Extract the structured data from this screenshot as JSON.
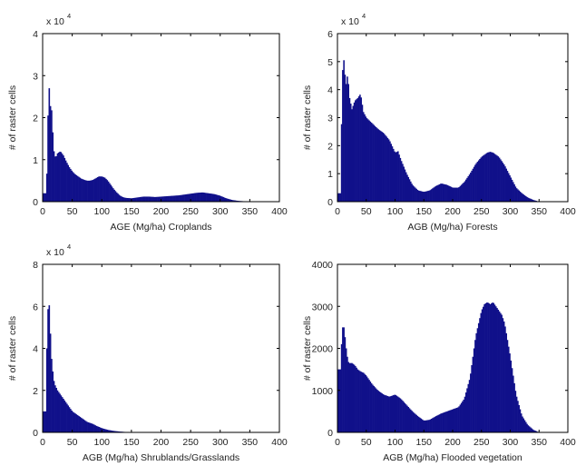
{
  "chart_data": [
    {
      "type": "bar",
      "xlabel": "AGE (Mg/ha) Croplands",
      "ylabel": "# of raster cells",
      "y_multiplier": "x 10",
      "y_exponent": "4",
      "xlim": [
        0,
        400
      ],
      "ylim": [
        0,
        4
      ],
      "xticks": [
        "0",
        "50",
        "100",
        "150",
        "200",
        "250",
        "300",
        "350",
        "400"
      ],
      "yticks": [
        "0",
        "1",
        "2",
        "3",
        "4"
      ],
      "x": [
        5,
        8,
        10,
        12,
        14,
        16,
        18,
        20,
        22,
        25,
        30,
        35,
        40,
        45,
        50,
        55,
        60,
        65,
        70,
        75,
        80,
        85,
        90,
        95,
        100,
        105,
        110,
        115,
        120,
        125,
        130,
        135,
        140,
        150,
        160,
        170,
        180,
        190,
        200,
        210,
        220,
        230,
        240,
        250,
        260,
        270,
        280,
        290,
        300,
        310,
        320,
        330,
        340,
        350
      ],
      "values": [
        0.2,
        0.9,
        3.2,
        2.2,
        2.35,
        2.0,
        1.3,
        1.1,
        1.05,
        1.15,
        1.2,
        1.1,
        0.95,
        0.82,
        0.72,
        0.65,
        0.6,
        0.55,
        0.52,
        0.5,
        0.5,
        0.52,
        0.56,
        0.6,
        0.6,
        0.57,
        0.5,
        0.4,
        0.3,
        0.22,
        0.15,
        0.11,
        0.09,
        0.08,
        0.1,
        0.12,
        0.12,
        0.11,
        0.12,
        0.13,
        0.14,
        0.15,
        0.17,
        0.19,
        0.21,
        0.22,
        0.2,
        0.18,
        0.14,
        0.08,
        0.04,
        0.02,
        0.01,
        0
      ]
    },
    {
      "type": "bar",
      "xlabel": "AGB (Mg/ha) Forests",
      "ylabel": "# of raster cells",
      "y_multiplier": "x 10",
      "y_exponent": "4",
      "xlim": [
        0,
        400
      ],
      "ylim": [
        0,
        6
      ],
      "xticks": [
        "0",
        "50",
        "100",
        "150",
        "200",
        "250",
        "300",
        "350",
        "400"
      ],
      "yticks": [
        "0",
        "1",
        "2",
        "3",
        "4",
        "5",
        "6"
      ],
      "x": [
        5,
        8,
        10,
        12,
        15,
        18,
        20,
        25,
        30,
        35,
        40,
        45,
        50,
        60,
        70,
        80,
        90,
        100,
        105,
        110,
        120,
        130,
        140,
        150,
        160,
        170,
        180,
        190,
        200,
        210,
        220,
        230,
        240,
        250,
        260,
        265,
        270,
        280,
        290,
        300,
        310,
        320,
        330,
        340,
        350
      ],
      "values": [
        0.3,
        4.0,
        5.4,
        4.7,
        4.2,
        4.6,
        3.8,
        3.3,
        3.6,
        3.7,
        3.85,
        3.2,
        3.0,
        2.8,
        2.6,
        2.45,
        2.2,
        1.75,
        1.8,
        1.5,
        1.0,
        0.6,
        0.4,
        0.35,
        0.4,
        0.55,
        0.65,
        0.6,
        0.5,
        0.5,
        0.7,
        1.0,
        1.35,
        1.6,
        1.75,
        1.78,
        1.75,
        1.6,
        1.3,
        0.9,
        0.5,
        0.3,
        0.15,
        0.06,
        0
      ]
    },
    {
      "type": "bar",
      "xlabel": "AGB (Mg/ha) Shrublands/Grasslands",
      "ylabel": "# of raster cells",
      "y_multiplier": "x 10",
      "y_exponent": "4",
      "xlim": [
        0,
        400
      ],
      "ylim": [
        0,
        8
      ],
      "xticks": [
        "0",
        "50",
        "100",
        "150",
        "200",
        "250",
        "300",
        "350",
        "400"
      ],
      "yticks": [
        "0",
        "2",
        "4",
        "6",
        "8"
      ],
      "x": [
        5,
        7,
        10,
        12,
        15,
        18,
        20,
        25,
        30,
        35,
        40,
        45,
        50,
        55,
        60,
        65,
        70,
        75,
        80,
        85,
        90,
        100,
        110,
        120,
        130,
        140,
        150
      ],
      "values": [
        1.0,
        4.0,
        6.8,
        5.3,
        3.5,
        2.6,
        2.3,
        2.0,
        1.8,
        1.6,
        1.4,
        1.2,
        1.0,
        0.9,
        0.8,
        0.7,
        0.6,
        0.5,
        0.45,
        0.4,
        0.32,
        0.2,
        0.12,
        0.07,
        0.04,
        0.02,
        0
      ]
    },
    {
      "type": "bar",
      "xlabel": "AGB (Mg/ha) Flooded vegetation",
      "ylabel": "# of raster cells",
      "xlim": [
        0,
        400
      ],
      "ylim": [
        0,
        4000
      ],
      "xticks": [
        "0",
        "50",
        "100",
        "150",
        "200",
        "250",
        "300",
        "350",
        "400"
      ],
      "yticks": [
        "0",
        "1000",
        "2000",
        "3000",
        "4000"
      ],
      "x": [
        5,
        8,
        10,
        12,
        15,
        18,
        20,
        25,
        30,
        35,
        40,
        45,
        50,
        55,
        60,
        70,
        80,
        90,
        100,
        110,
        120,
        130,
        140,
        150,
        160,
        170,
        180,
        190,
        200,
        210,
        220,
        230,
        240,
        250,
        255,
        260,
        265,
        270,
        275,
        280,
        285,
        290,
        300,
        310,
        320,
        330,
        340,
        350
      ],
      "values": [
        1500,
        2400,
        2600,
        2400,
        2000,
        1700,
        1650,
        1650,
        1600,
        1500,
        1450,
        1420,
        1350,
        1250,
        1150,
        1000,
        900,
        850,
        900,
        800,
        650,
        500,
        380,
        280,
        300,
        380,
        450,
        500,
        550,
        600,
        800,
        1300,
        2300,
        2900,
        3050,
        3100,
        3050,
        3100,
        3000,
        2900,
        2800,
        2600,
        1800,
        900,
        400,
        180,
        60,
        0
      ]
    }
  ]
}
